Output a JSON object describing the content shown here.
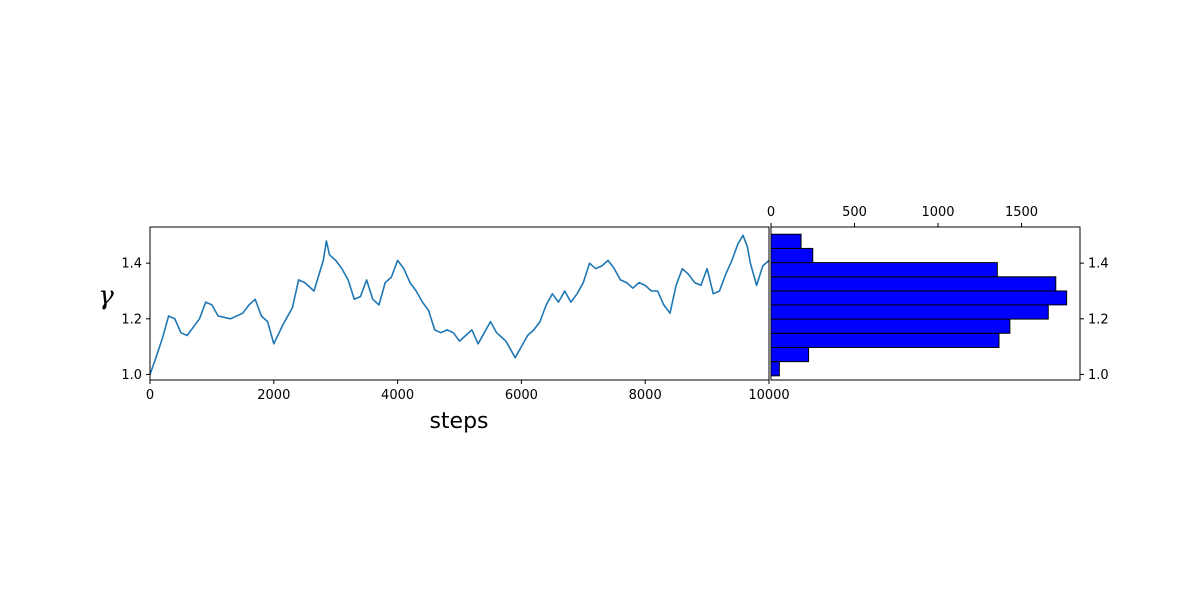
{
  "chart_data": [
    {
      "type": "line",
      "xlabel": "steps",
      "ylabel": "γ",
      "xlim": [
        0,
        10000
      ],
      "ylim": [
        0.98,
        1.53
      ],
      "x_ticks": [
        0,
        2000,
        4000,
        6000,
        8000,
        10000
      ],
      "y_ticks": [
        1.0,
        1.2,
        1.4
      ],
      "grid": false,
      "line_color": "#1f77b4",
      "series": [
        {
          "points": [
            [
              0,
              1.0
            ],
            [
              80,
              1.05
            ],
            [
              200,
              1.13
            ],
            [
              300,
              1.21
            ],
            [
              400,
              1.2
            ],
            [
              500,
              1.15
            ],
            [
              600,
              1.14
            ],
            [
              800,
              1.2
            ],
            [
              900,
              1.26
            ],
            [
              1000,
              1.25
            ],
            [
              1100,
              1.21
            ],
            [
              1300,
              1.2
            ],
            [
              1500,
              1.22
            ],
            [
              1600,
              1.25
            ],
            [
              1700,
              1.27
            ],
            [
              1800,
              1.21
            ],
            [
              1900,
              1.19
            ],
            [
              2000,
              1.11
            ],
            [
              2150,
              1.18
            ],
            [
              2300,
              1.24
            ],
            [
              2400,
              1.34
            ],
            [
              2500,
              1.33
            ],
            [
              2650,
              1.3
            ],
            [
              2800,
              1.41
            ],
            [
              2850,
              1.48
            ],
            [
              2900,
              1.43
            ],
            [
              3000,
              1.41
            ],
            [
              3100,
              1.38
            ],
            [
              3200,
              1.34
            ],
            [
              3300,
              1.27
            ],
            [
              3400,
              1.28
            ],
            [
              3500,
              1.34
            ],
            [
              3600,
              1.27
            ],
            [
              3700,
              1.25
            ],
            [
              3800,
              1.33
            ],
            [
              3900,
              1.35
            ],
            [
              4000,
              1.41
            ],
            [
              4100,
              1.38
            ],
            [
              4200,
              1.33
            ],
            [
              4300,
              1.3
            ],
            [
              4400,
              1.26
            ],
            [
              4500,
              1.23
            ],
            [
              4600,
              1.16
            ],
            [
              4700,
              1.15
            ],
            [
              4800,
              1.16
            ],
            [
              4900,
              1.15
            ],
            [
              5000,
              1.12
            ],
            [
              5100,
              1.14
            ],
            [
              5200,
              1.16
            ],
            [
              5300,
              1.11
            ],
            [
              5400,
              1.15
            ],
            [
              5500,
              1.19
            ],
            [
              5600,
              1.15
            ],
            [
              5750,
              1.12
            ],
            [
              5900,
              1.06
            ],
            [
              6000,
              1.1
            ],
            [
              6100,
              1.14
            ],
            [
              6200,
              1.16
            ],
            [
              6300,
              1.19
            ],
            [
              6400,
              1.25
            ],
            [
              6500,
              1.29
            ],
            [
              6600,
              1.26
            ],
            [
              6700,
              1.3
            ],
            [
              6800,
              1.26
            ],
            [
              6900,
              1.29
            ],
            [
              7000,
              1.33
            ],
            [
              7100,
              1.4
            ],
            [
              7200,
              1.38
            ],
            [
              7300,
              1.39
            ],
            [
              7400,
              1.41
            ],
            [
              7500,
              1.38
            ],
            [
              7600,
              1.34
            ],
            [
              7700,
              1.33
            ],
            [
              7800,
              1.31
            ],
            [
              7900,
              1.33
            ],
            [
              8000,
              1.32
            ],
            [
              8100,
              1.3
            ],
            [
              8200,
              1.3
            ],
            [
              8300,
              1.25
            ],
            [
              8400,
              1.22
            ],
            [
              8500,
              1.32
            ],
            [
              8600,
              1.38
            ],
            [
              8700,
              1.36
            ],
            [
              8800,
              1.33
            ],
            [
              8900,
              1.32
            ],
            [
              9000,
              1.38
            ],
            [
              9100,
              1.29
            ],
            [
              9200,
              1.3
            ],
            [
              9300,
              1.36
            ],
            [
              9400,
              1.41
            ],
            [
              9500,
              1.47
            ],
            [
              9580,
              1.5
            ],
            [
              9650,
              1.46
            ],
            [
              9700,
              1.4
            ],
            [
              9800,
              1.32
            ],
            [
              9900,
              1.39
            ],
            [
              10000,
              1.41
            ]
          ]
        }
      ]
    },
    {
      "type": "bar",
      "orientation": "horizontal",
      "xlim": [
        0,
        1850
      ],
      "ylim": [
        0.98,
        1.53
      ],
      "x_ticks": [
        0,
        500,
        1000,
        1500
      ],
      "y_ticks": [
        1.0,
        1.2,
        1.4
      ],
      "x_axis_position": "top",
      "y_axis_position": "right",
      "bar_color": "#0000ff",
      "bar_edge_color": "#000000",
      "bins": [
        {
          "low": 0.995,
          "high": 1.046,
          "count": 50
        },
        {
          "low": 1.046,
          "high": 1.097,
          "count": 225
        },
        {
          "low": 1.097,
          "high": 1.148,
          "count": 1365
        },
        {
          "low": 1.148,
          "high": 1.199,
          "count": 1430
        },
        {
          "low": 1.199,
          "high": 1.25,
          "count": 1660
        },
        {
          "low": 1.25,
          "high": 1.3,
          "count": 1770
        },
        {
          "low": 1.3,
          "high": 1.351,
          "count": 1705
        },
        {
          "low": 1.351,
          "high": 1.402,
          "count": 1355
        },
        {
          "low": 1.402,
          "high": 1.453,
          "count": 250
        },
        {
          "low": 1.453,
          "high": 1.504,
          "count": 180
        }
      ]
    }
  ]
}
